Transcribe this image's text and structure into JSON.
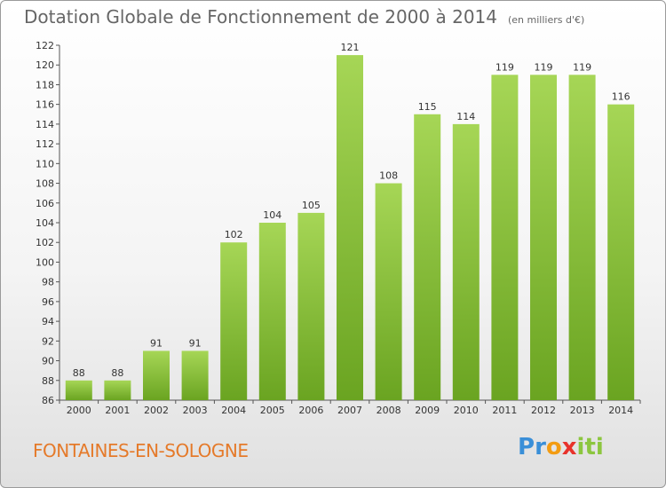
{
  "header": {
    "title": "Dotation Globale de Fonctionnement de 2000 à 2014",
    "unit": "(en milliers d'€)"
  },
  "footer": {
    "commune": "FONTAINES-EN-SOLOGNE",
    "logo_letters": [
      "P",
      "r",
      "o",
      "x",
      "i",
      "t",
      "i"
    ],
    "logo_colors": [
      "#3a8fd8",
      "#3a8fd8",
      "#f39c12",
      "#e8322b",
      "#8cc63f",
      "#8cc63f",
      "#8cc63f"
    ]
  },
  "colors": {
    "bar_light": "#a6d656",
    "bar_dark": "#6aa421",
    "title": "#666666",
    "commune": "#e57a2a"
  },
  "chart_data": {
    "type": "bar",
    "title": "Dotation Globale de Fonctionnement de 2000 à 2014",
    "xlabel": "",
    "ylabel": "",
    "categories": [
      "2000",
      "2001",
      "2002",
      "2003",
      "2004",
      "2005",
      "2006",
      "2007",
      "2008",
      "2009",
      "2010",
      "2011",
      "2012",
      "2013",
      "2014"
    ],
    "values": [
      88,
      88,
      91,
      91,
      102,
      104,
      105,
      121,
      108,
      115,
      114,
      119,
      119,
      119,
      116
    ],
    "ylim": [
      86,
      122
    ],
    "yticks": [
      86,
      88,
      90,
      92,
      94,
      96,
      98,
      100,
      102,
      104,
      106,
      108,
      110,
      112,
      114,
      116,
      118,
      120,
      122
    ],
    "grid": false,
    "legend": "none"
  }
}
